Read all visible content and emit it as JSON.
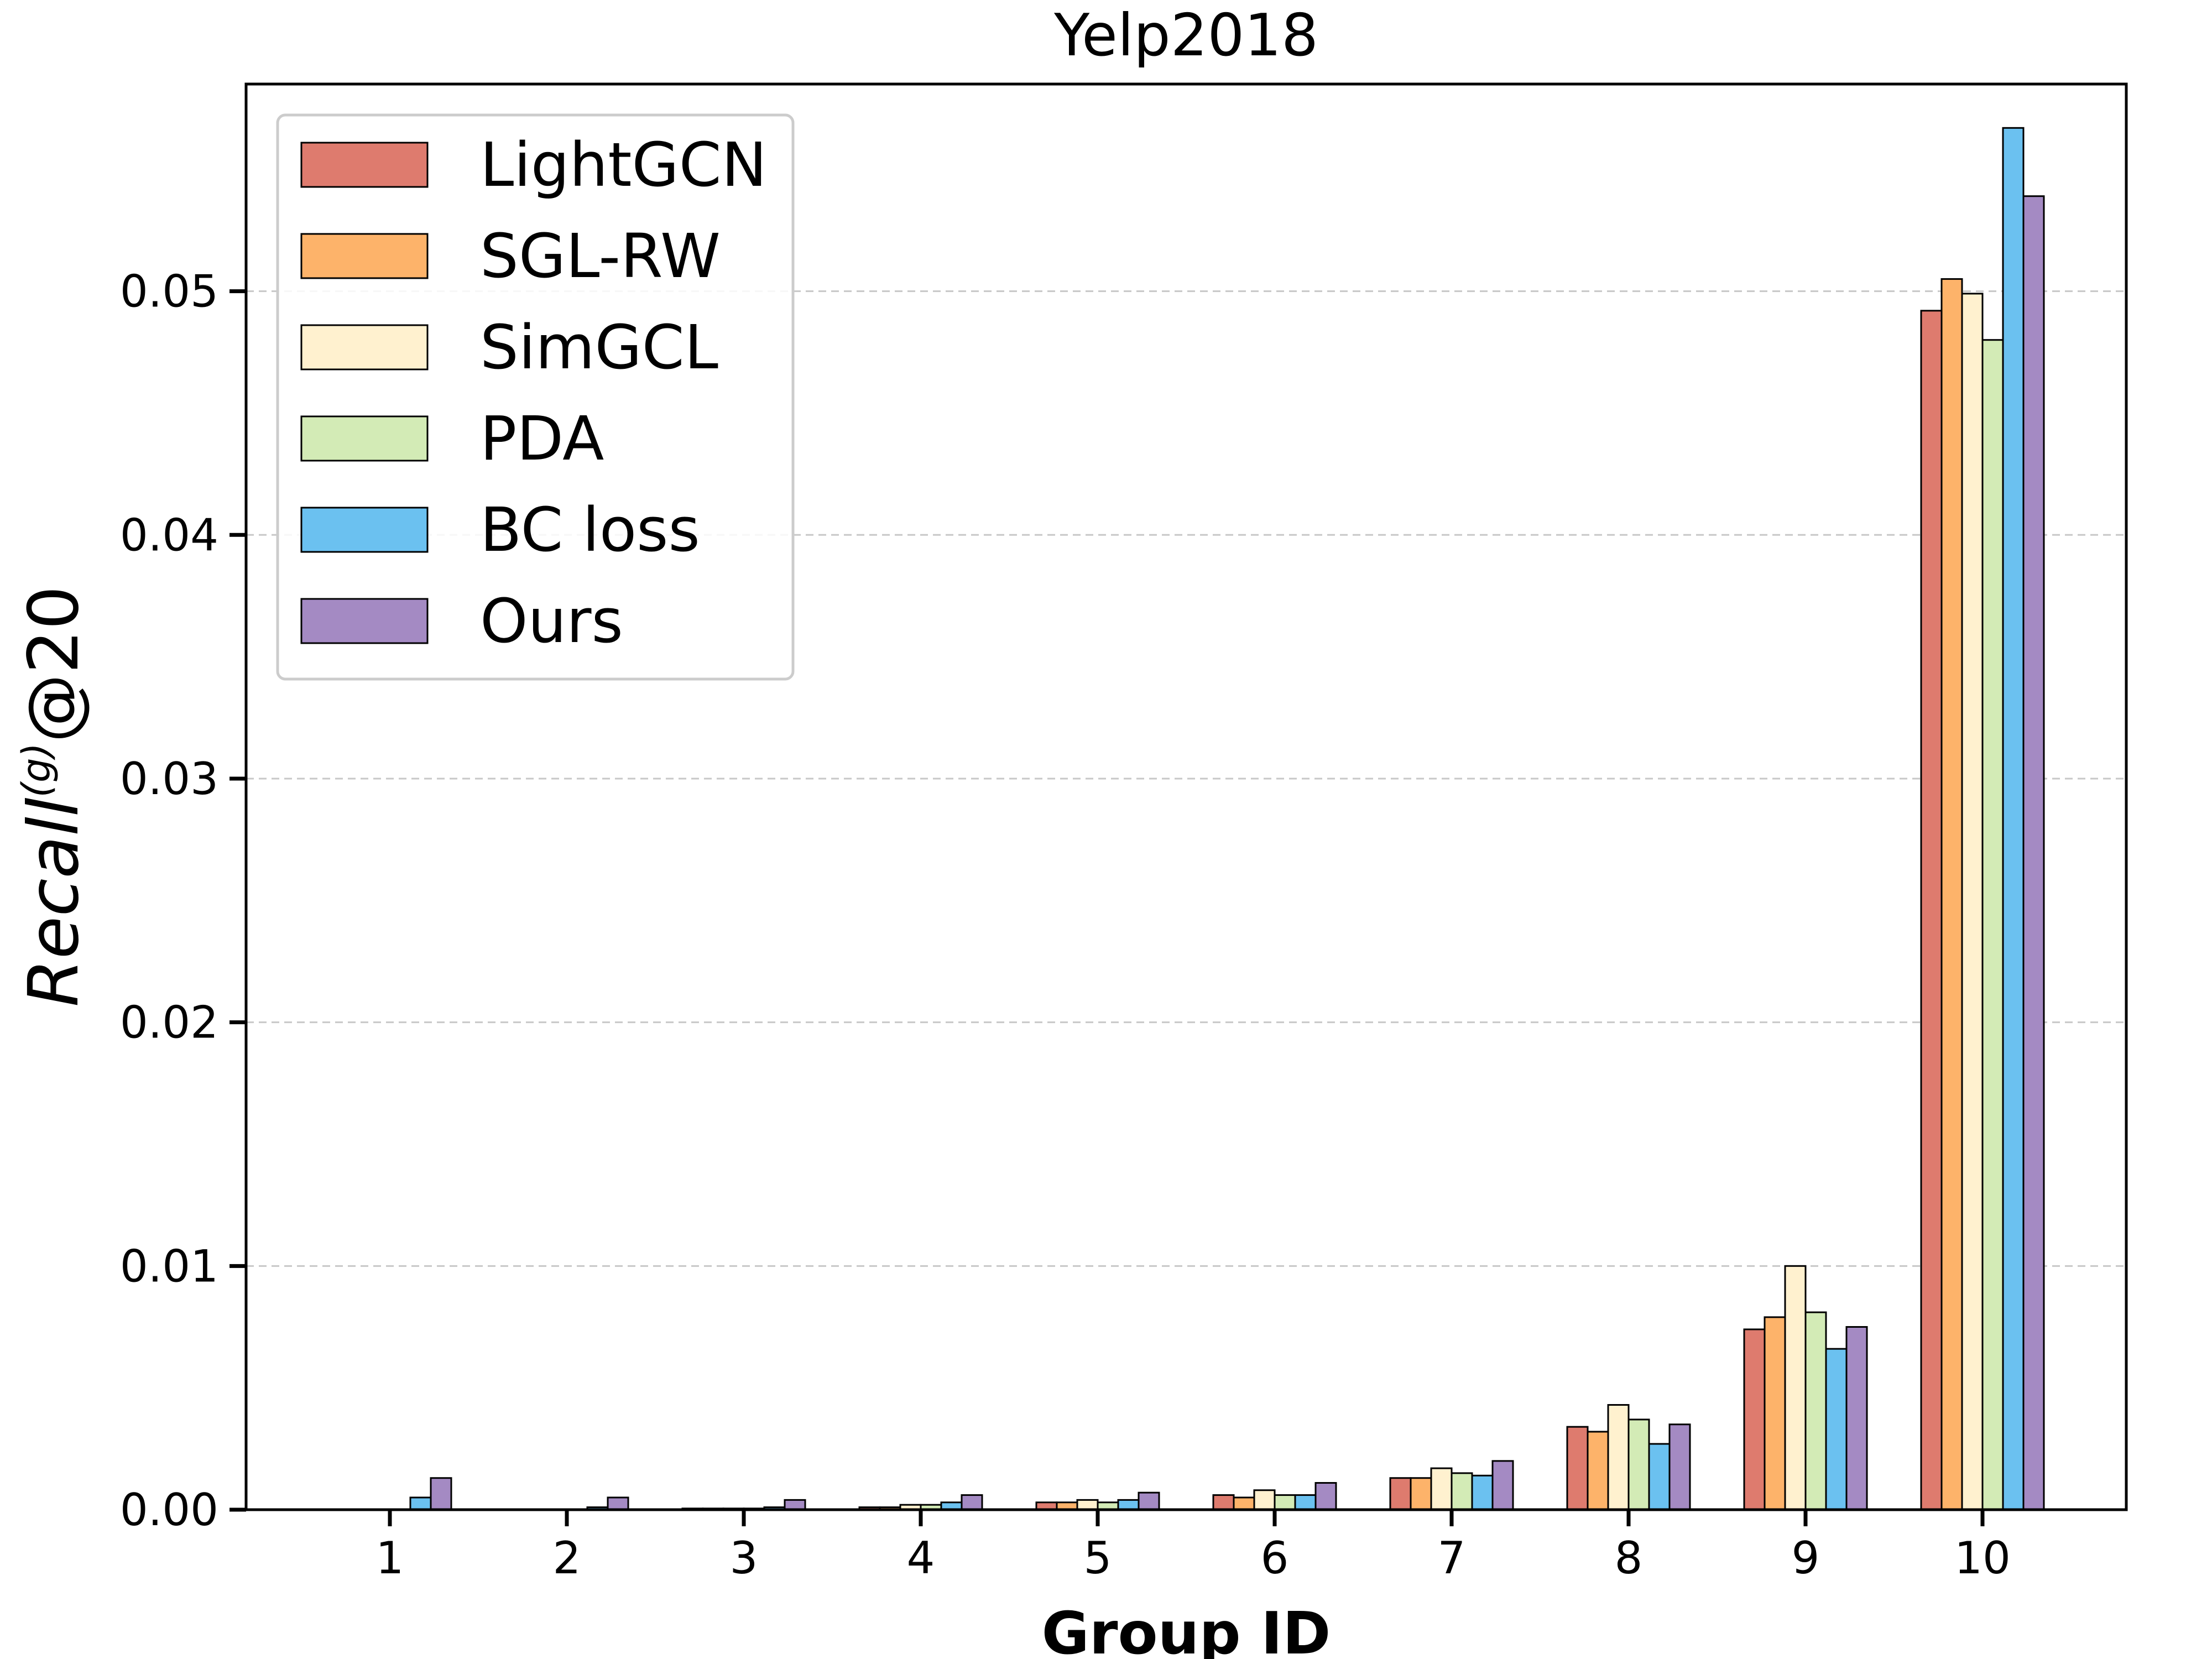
{
  "chart_data": {
    "type": "bar",
    "title": "Yelp2018",
    "xlabel": "Group ID",
    "ylabel": {
      "base": "Recall",
      "superscript": "(g)",
      "suffix": "@20"
    },
    "categories": [
      "1",
      "2",
      "3",
      "4",
      "5",
      "6",
      "7",
      "8",
      "9",
      "10"
    ],
    "ylim": [
      0,
      0.0585
    ],
    "yticks": [
      0.0,
      0.01,
      0.02,
      0.03,
      0.04,
      0.05
    ],
    "ytick_labels": [
      "0.00",
      "0.01",
      "0.02",
      "0.03",
      "0.04",
      "0.05"
    ],
    "grid": "horizontal-dashed",
    "legend_position": "upper-left",
    "series": [
      {
        "name": "LightGCN",
        "color": "#de7b6e",
        "values": [
          0.0,
          0.0,
          5e-05,
          0.0001,
          0.0003,
          0.0006,
          0.0013,
          0.0034,
          0.0074,
          0.0492
        ]
      },
      {
        "name": "SGL-RW",
        "color": "#fdb36a",
        "values": [
          0.0,
          0.0,
          5e-05,
          0.0001,
          0.0003,
          0.0005,
          0.0013,
          0.0032,
          0.0079,
          0.0505
        ]
      },
      {
        "name": "SimGCL",
        "color": "#fff1cf",
        "values": [
          0.0,
          0.0,
          5e-05,
          0.0002,
          0.0004,
          0.0008,
          0.0017,
          0.0043,
          0.01,
          0.0499
        ]
      },
      {
        "name": "PDA",
        "color": "#d3ebb6",
        "values": [
          0.0,
          0.0,
          5e-05,
          0.0002,
          0.0003,
          0.0006,
          0.0015,
          0.0037,
          0.0081,
          0.048
        ]
      },
      {
        "name": "BC loss",
        "color": "#6bc1f0",
        "values": [
          0.0005,
          0.0001,
          0.0001,
          0.0003,
          0.0004,
          0.0006,
          0.0014,
          0.0027,
          0.0066,
          0.0567
        ]
      },
      {
        "name": "Ours",
        "color": "#a48ac3",
        "values": [
          0.0013,
          0.0005,
          0.0004,
          0.0006,
          0.0007,
          0.0011,
          0.002,
          0.0035,
          0.0075,
          0.0539
        ]
      }
    ]
  }
}
